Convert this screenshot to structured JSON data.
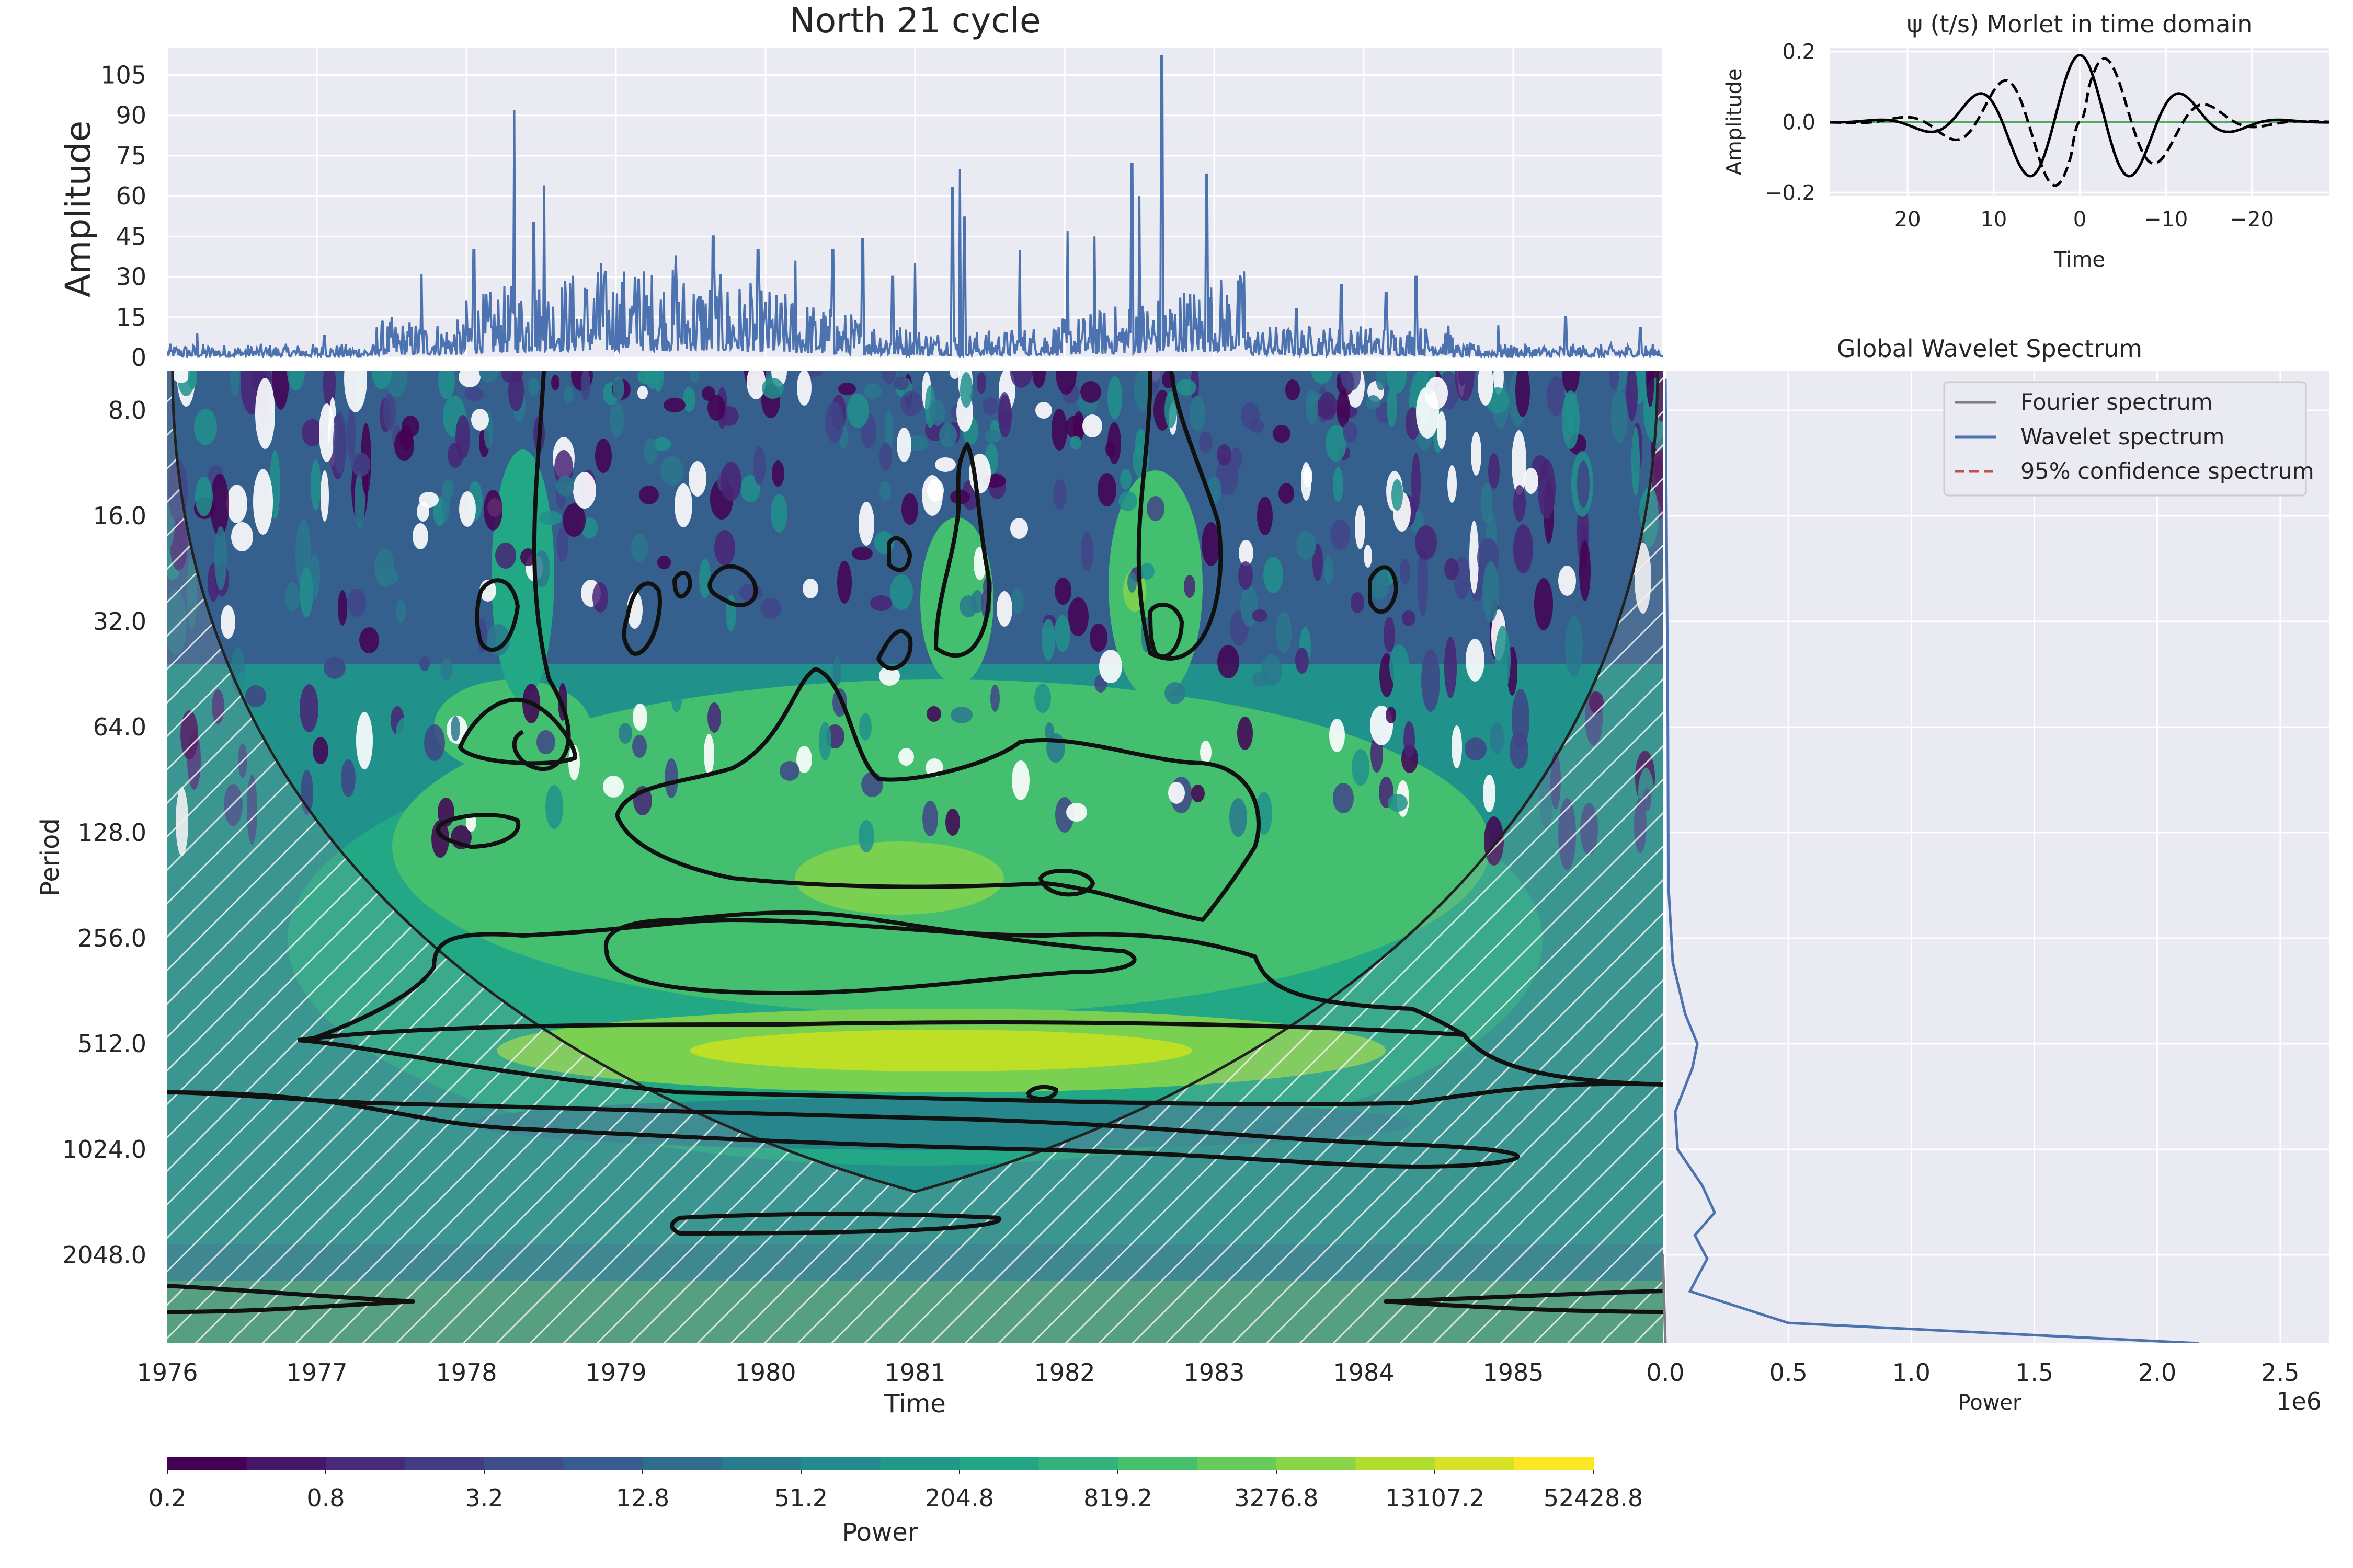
{
  "colors": {
    "axes_bg": "#eaeaf2",
    "grid": "#ffffff",
    "series": "#4c72b0",
    "fourier": "#7f7f7f",
    "confidence": "#c44e52",
    "morlet_imag": "#000000",
    "zero_line": "#55a868",
    "contour": "#111111",
    "viridis": [
      "#440154",
      "#482475",
      "#414487",
      "#355f8d",
      "#2a788e",
      "#21918c",
      "#22a884",
      "#44bf70",
      "#7ad151",
      "#bddf26",
      "#fde725"
    ]
  },
  "timeseries": {
    "title": "North 21 cycle",
    "ylabel": "Amplitude",
    "yticks": [
      "0",
      "15",
      "30",
      "45",
      "60",
      "75",
      "90",
      "105"
    ],
    "ylim": [
      0,
      115
    ],
    "xlim": [
      1976,
      1986
    ],
    "peaks": [
      {
        "t": 1976.2,
        "v": 9
      },
      {
        "t": 1977.05,
        "v": 8
      },
      {
        "t": 1977.5,
        "v": 15
      },
      {
        "t": 1977.7,
        "v": 31
      },
      {
        "t": 1978.05,
        "v": 40
      },
      {
        "t": 1978.32,
        "v": 92
      },
      {
        "t": 1978.45,
        "v": 50
      },
      {
        "t": 1978.52,
        "v": 64
      },
      {
        "t": 1978.9,
        "v": 35
      },
      {
        "t": 1979.15,
        "v": 29
      },
      {
        "t": 1979.4,
        "v": 38
      },
      {
        "t": 1979.65,
        "v": 45
      },
      {
        "t": 1979.95,
        "v": 40
      },
      {
        "t": 1980.2,
        "v": 36
      },
      {
        "t": 1980.45,
        "v": 40
      },
      {
        "t": 1980.65,
        "v": 44
      },
      {
        "t": 1980.85,
        "v": 30
      },
      {
        "t": 1981.0,
        "v": 35
      },
      {
        "t": 1981.25,
        "v": 63
      },
      {
        "t": 1981.3,
        "v": 70
      },
      {
        "t": 1981.33,
        "v": 52
      },
      {
        "t": 1981.7,
        "v": 40
      },
      {
        "t": 1982.02,
        "v": 47
      },
      {
        "t": 1982.2,
        "v": 45
      },
      {
        "t": 1982.45,
        "v": 72
      },
      {
        "t": 1982.5,
        "v": 60
      },
      {
        "t": 1982.65,
        "v": 112
      },
      {
        "t": 1982.95,
        "v": 68
      },
      {
        "t": 1983.2,
        "v": 32
      },
      {
        "t": 1983.55,
        "v": 18
      },
      {
        "t": 1983.85,
        "v": 27
      },
      {
        "t": 1984.15,
        "v": 24
      },
      {
        "t": 1984.35,
        "v": 30
      },
      {
        "t": 1984.9,
        "v": 12
      },
      {
        "t": 1985.35,
        "v": 15
      },
      {
        "t": 1985.85,
        "v": 11
      }
    ]
  },
  "morlet": {
    "title": "ψ (t/s) Morlet in time domain",
    "xlabel": "Time",
    "ylabel": "Amplitude",
    "xticks": [
      "20",
      "10",
      "0",
      "−10",
      "−20"
    ],
    "xtick_values": [
      20,
      10,
      0,
      -10,
      -20
    ],
    "yticks": [
      "−0.2",
      "0.0",
      "0.2"
    ],
    "ytick_values": [
      -0.2,
      0.0,
      0.2
    ],
    "xlim": [
      29,
      -29
    ],
    "ylim": [
      -0.21,
      0.21
    ]
  },
  "wavelet": {
    "ylabel": "Period",
    "xlabel": "Time",
    "yticks": [
      "8.0",
      "16.0",
      "32.0",
      "64.0",
      "128.0",
      "256.0",
      "512.0",
      "1024.0",
      "2048.0"
    ],
    "xticks": [
      "1976",
      "1977",
      "1978",
      "1979",
      "1980",
      "1981",
      "1982",
      "1983",
      "1984",
      "1985"
    ]
  },
  "global_spectrum": {
    "title": "Global Wavelet Spectrum",
    "xlabel": "Power",
    "scale_note": "1e6",
    "xticks": [
      "0.0",
      "0.5",
      "1.0",
      "1.5",
      "2.0",
      "2.5"
    ],
    "xlim": [
      0,
      2.7
    ],
    "legend": [
      "Fourier spectrum",
      "Wavelet spectrum",
      "95% confidence spectrum"
    ],
    "curve": [
      {
        "period": 6.5,
        "power": 0.0
      },
      {
        "period": 24,
        "power": 0.006
      },
      {
        "period": 64,
        "power": 0.01
      },
      {
        "period": 180,
        "power": 0.012
      },
      {
        "period": 300,
        "power": 0.03
      },
      {
        "period": 420,
        "power": 0.08
      },
      {
        "period": 512,
        "power": 0.13
      },
      {
        "period": 600,
        "power": 0.11
      },
      {
        "period": 800,
        "power": 0.04
      },
      {
        "period": 1024,
        "power": 0.05
      },
      {
        "period": 1300,
        "power": 0.15
      },
      {
        "period": 1550,
        "power": 0.2
      },
      {
        "period": 1800,
        "power": 0.12
      },
      {
        "period": 2100,
        "power": 0.17
      },
      {
        "period": 2600,
        "power": 0.1
      },
      {
        "period": 3200,
        "power": 0.5
      },
      {
        "period": 3700,
        "power": 2.17
      }
    ]
  },
  "colorbar": {
    "label": "Power",
    "ticks": [
      "0.2",
      "0.8",
      "3.2",
      "12.8",
      "51.2",
      "204.8",
      "819.2",
      "3276.8",
      "13107.2",
      "52428.8"
    ]
  }
}
